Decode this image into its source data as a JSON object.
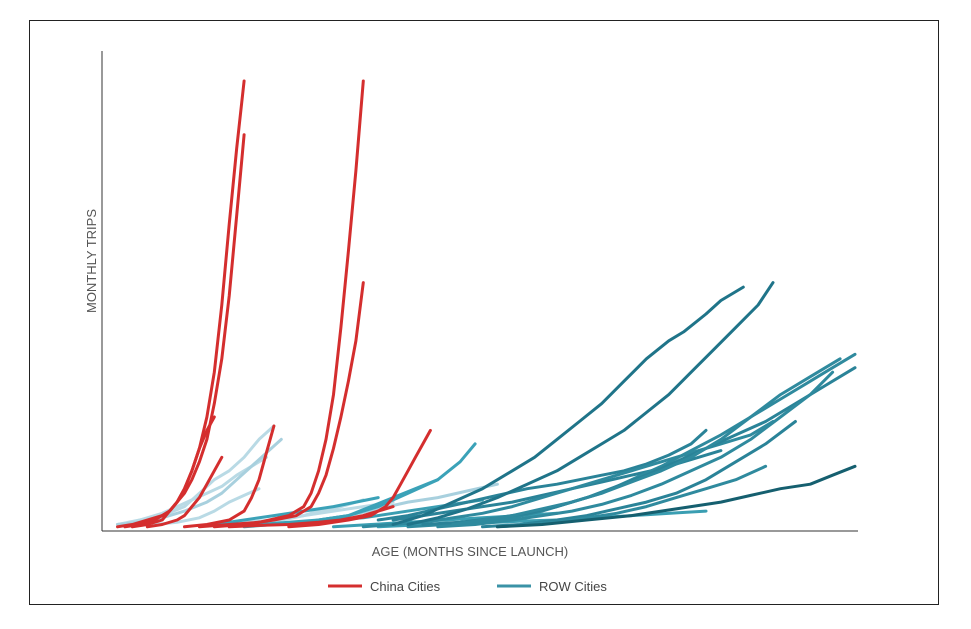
{
  "chart_data": {
    "type": "line",
    "xlabel": "AGE (MONTHS SINCE LAUNCH)",
    "ylabel": "MONTHLY TRIPS",
    "xlim": [
      0,
      100
    ],
    "ylim": [
      0,
      100
    ],
    "grid": false,
    "legend_position": "bottom",
    "legend": [
      {
        "label": "China Cities",
        "color": "#d42e2e"
      },
      {
        "label": "ROW Cities",
        "color": "#3a92a6"
      }
    ],
    "series": [
      {
        "group": "row-light",
        "color": "#b9dae5",
        "x": [
          1,
          3,
          5,
          7,
          9,
          11,
          13,
          15,
          17,
          19,
          21
        ],
        "y": [
          1,
          1.5,
          2.5,
          3.5,
          5,
          6.5,
          8,
          9.5,
          12,
          14,
          16
        ]
      },
      {
        "group": "row-light",
        "color": "#b9dae5",
        "x": [
          1,
          4,
          7,
          10,
          12,
          14,
          16,
          18,
          20,
          22
        ],
        "y": [
          1,
          2,
          3,
          5,
          8,
          11,
          13,
          16,
          20,
          23
        ]
      },
      {
        "group": "row-light",
        "color": "#a8d0de",
        "x": [
          1,
          4,
          7,
          10,
          13,
          15,
          17,
          19,
          21,
          23
        ],
        "y": [
          1,
          1.5,
          2.5,
          4,
          6,
          8,
          11,
          14,
          17,
          20
        ]
      },
      {
        "group": "row-light",
        "color": "#b9dae5",
        "x": [
          6,
          9,
          12,
          14,
          16,
          18,
          20
        ],
        "y": [
          1,
          1.5,
          2.5,
          4,
          6,
          7.5,
          9
        ]
      },
      {
        "group": "row-light",
        "color": "#b9dae5",
        "x": [
          20,
          23,
          26,
          28,
          30,
          32,
          34
        ],
        "y": [
          1,
          2,
          3,
          4,
          4.5,
          5.5,
          6.5
        ]
      },
      {
        "group": "row-light",
        "color": "#a8d0de",
        "x": [
          28,
          32,
          36,
          40,
          44,
          48,
          52
        ],
        "y": [
          2,
          3,
          4.5,
          6,
          7,
          8.5,
          10
        ]
      },
      {
        "group": "row-light",
        "color": "#b9dae5",
        "x": [
          14,
          18,
          22,
          26,
          30,
          34,
          38
        ],
        "y": [
          1,
          1.5,
          2,
          3,
          4,
          5,
          6
        ]
      },
      {
        "group": "row-mid",
        "color": "#3ba2b8",
        "x": [
          20,
          24,
          28,
          32,
          36,
          40,
          44,
          47,
          49
        ],
        "y": [
          1,
          1.5,
          2,
          3,
          5,
          8,
          11,
          15,
          19
        ]
      },
      {
        "group": "row-mid",
        "color": "#3ba2b8",
        "x": [
          24,
          28,
          32,
          35,
          38,
          41,
          44
        ],
        "y": [
          1,
          2,
          3,
          5,
          7,
          9,
          11
        ]
      },
      {
        "group": "row-mid",
        "color": "#3ba2b8",
        "x": [
          14,
          18,
          22,
          26,
          30,
          33,
          36
        ],
        "y": [
          1,
          2,
          3,
          4,
          5,
          6,
          7
        ]
      },
      {
        "group": "row-mid",
        "color": "#3a9eb2",
        "x": [
          18,
          22,
          26,
          30,
          34,
          38,
          42,
          46,
          50
        ],
        "y": [
          0.5,
          1,
          1.5,
          2,
          2.5,
          3.5,
          4.5,
          5.5,
          6.5
        ]
      },
      {
        "group": "row-mid",
        "color": "#3a9eb2",
        "x": [
          30,
          35,
          40,
          45,
          50,
          55,
          60
        ],
        "y": [
          0.5,
          1,
          1.5,
          2,
          2.5,
          3,
          3.5
        ]
      },
      {
        "group": "row-mid",
        "color": "#3a9eb2",
        "x": [
          36,
          40,
          44,
          48,
          52,
          56,
          60,
          64,
          68,
          72,
          76,
          80
        ],
        "y": [
          0.5,
          0.8,
          1,
          1.2,
          1.5,
          1.8,
          2,
          2.4,
          2.8,
          3.2,
          3.6,
          4
        ]
      },
      {
        "group": "row-dark",
        "color": "#2a8398",
        "x": [
          38,
          42,
          46,
          50,
          54,
          58,
          62,
          66,
          70,
          74,
          78,
          82
        ],
        "y": [
          2,
          3,
          4,
          5,
          6,
          7.5,
          9,
          10.5,
          12,
          13.5,
          15.5,
          17.5
        ]
      },
      {
        "group": "row-dark",
        "color": "#2a8398",
        "x": [
          36,
          40,
          44,
          48,
          52,
          56,
          60,
          63,
          66,
          69,
          72,
          75,
          78,
          80
        ],
        "y": [
          2,
          3,
          4.5,
          6,
          7.5,
          9,
          10,
          11,
          12,
          13,
          14.5,
          16.5,
          19,
          22
        ]
      },
      {
        "group": "row-dark",
        "color": "#2f8a9e",
        "x": [
          34,
          38,
          42,
          46,
          50,
          54,
          58,
          62,
          66,
          70,
          74,
          78,
          82,
          86,
          89
        ],
        "y": [
          0.5,
          1,
          1.5,
          2.5,
          3.5,
          5,
          7,
          9,
          11,
          13,
          15,
          17,
          19,
          21,
          24
        ]
      },
      {
        "group": "row-dark",
        "color": "#2f8a9e",
        "x": [
          40,
          45,
          50,
          54,
          58,
          62,
          66,
          70,
          74,
          78,
          82,
          86,
          90,
          94,
          97,
          100
        ],
        "y": [
          0.5,
          1,
          1.5,
          2.5,
          4,
          6,
          8,
          11,
          14,
          17.5,
          21,
          25,
          29,
          33,
          36,
          39
        ]
      },
      {
        "group": "row-dark",
        "color": "#2a8398",
        "x": [
          42,
          47,
          52,
          56,
          60,
          64,
          68,
          72,
          76,
          80,
          84,
          88,
          92,
          96,
          100
        ],
        "y": [
          1,
          1.5,
          2.5,
          3.5,
          5,
          7,
          9.5,
          12,
          15,
          18,
          21,
          24,
          28,
          32,
          36
        ]
      },
      {
        "group": "row-dark",
        "color": "#2f8a9e",
        "x": [
          44,
          49,
          54,
          58,
          62,
          66,
          70,
          74,
          78,
          82,
          86,
          90,
          94,
          97
        ],
        "y": [
          0.5,
          1,
          2,
          3,
          4,
          5.5,
          7.5,
          10,
          13,
          16,
          20,
          25,
          30,
          35
        ]
      },
      {
        "group": "row-dark",
        "color": "#1f7489",
        "x": [
          38,
          42,
          46,
          50,
          54,
          57,
          60,
          63,
          66,
          69,
          72,
          75,
          77,
          80,
          82,
          85
        ],
        "y": [
          1,
          3,
          6,
          9,
          13,
          16,
          20,
          24,
          28,
          33,
          38,
          42,
          44,
          48,
          51,
          54
        ]
      },
      {
        "group": "row-dark",
        "color": "#1f7489",
        "x": [
          40,
          44,
          48,
          52,
          56,
          60,
          63,
          66,
          69,
          72,
          75,
          78,
          81,
          84,
          87,
          89
        ],
        "y": [
          1,
          2.5,
          4.5,
          7,
          10,
          13,
          16,
          19,
          22,
          26,
          30,
          35,
          40,
          45,
          50,
          55
        ]
      },
      {
        "group": "row-dark",
        "color": "#2f8a9e",
        "x": [
          46,
          50,
          54,
          58,
          62,
          66,
          70,
          74,
          78,
          82,
          86,
          90,
          94,
          98
        ],
        "y": [
          1,
          2,
          3,
          4.5,
          6,
          8,
          10.5,
          13,
          16,
          20,
          25,
          30,
          34,
          38
        ]
      },
      {
        "group": "row-dark",
        "color": "#2a8398",
        "x": [
          50,
          55,
          60,
          64,
          68,
          72,
          76,
          80,
          84,
          88,
          92
        ],
        "y": [
          0.5,
          1,
          2,
          3,
          4.5,
          6,
          8,
          11,
          15,
          19,
          24
        ]
      },
      {
        "group": "row-dark",
        "color": "#2f8a9e",
        "x": [
          52,
          56,
          60,
          64,
          68,
          72,
          76,
          80,
          84,
          88
        ],
        "y": [
          0.5,
          1,
          1.5,
          2.5,
          3.5,
          5,
          7,
          9,
          11,
          14
        ]
      },
      {
        "group": "row-darkest",
        "color": "#155f6f",
        "x": [
          52,
          58,
          64,
          70,
          74,
          78,
          82,
          86,
          90,
          94,
          97,
          100
        ],
        "y": [
          0.5,
          1,
          2,
          3,
          4,
          5,
          6,
          7.5,
          9,
          10,
          12,
          14
        ]
      },
      {
        "group": "china",
        "color": "#d42e2e",
        "x": [
          1,
          3,
          5,
          7,
          8,
          9,
          10,
          11,
          12,
          13,
          14,
          15,
          16,
          17,
          18
        ],
        "y": [
          0.5,
          1,
          2,
          3,
          4,
          6,
          9,
          13,
          18,
          25,
          35,
          50,
          68,
          85,
          100
        ]
      },
      {
        "group": "china",
        "color": "#d42e2e",
        "x": [
          2,
          4,
          6,
          8,
          9,
          10,
          11,
          12,
          13,
          14,
          15,
          16,
          17,
          18
        ],
        "y": [
          0.5,
          1,
          2,
          4,
          6,
          8,
          11,
          15,
          20,
          28,
          38,
          52,
          70,
          88
        ]
      },
      {
        "group": "china",
        "color": "#d42e2e",
        "x": [
          3,
          5,
          7,
          8,
          9,
          10,
          11,
          12,
          13,
          14
        ],
        "y": [
          0.5,
          1,
          2,
          4,
          6,
          9,
          13,
          18,
          22,
          25
        ]
      },
      {
        "group": "china",
        "color": "#d42e2e",
        "x": [
          5,
          7,
          9,
          10,
          11,
          12,
          13,
          14,
          15
        ],
        "y": [
          0.5,
          1,
          2,
          3,
          5,
          7,
          10,
          13,
          16
        ]
      },
      {
        "group": "china",
        "color": "#d42e2e",
        "x": [
          10,
          13,
          16,
          18,
          19,
          20,
          21,
          22
        ],
        "y": [
          0.5,
          1,
          2,
          4,
          7,
          11,
          17,
          23
        ]
      },
      {
        "group": "china",
        "color": "#d42e2e",
        "x": [
          12,
          16,
          20,
          24,
          26,
          27,
          28,
          29,
          30,
          31,
          32,
          33,
          34
        ],
        "y": [
          0.5,
          1,
          1.5,
          3,
          5,
          8,
          13,
          20,
          30,
          45,
          62,
          80,
          100
        ]
      },
      {
        "group": "china",
        "color": "#d42e2e",
        "x": [
          14,
          18,
          22,
          25,
          27,
          28,
          29,
          30,
          31,
          32,
          33,
          34
        ],
        "y": [
          0.5,
          1,
          2,
          3,
          5,
          8,
          12,
          18,
          25,
          33,
          42,
          55
        ]
      },
      {
        "group": "china",
        "color": "#d42e2e",
        "x": [
          24,
          28,
          32,
          35,
          37,
          38,
          39,
          40,
          41,
          42,
          43
        ],
        "y": [
          0.5,
          1,
          2,
          3,
          5,
          7,
          10,
          13,
          16,
          19,
          22
        ]
      },
      {
        "group": "china",
        "color": "#d42e2e",
        "x": [
          16,
          20,
          24,
          28,
          31,
          34,
          36,
          38
        ],
        "y": [
          0.5,
          0.8,
          1,
          1.5,
          2,
          3,
          4,
          5
        ]
      }
    ]
  }
}
